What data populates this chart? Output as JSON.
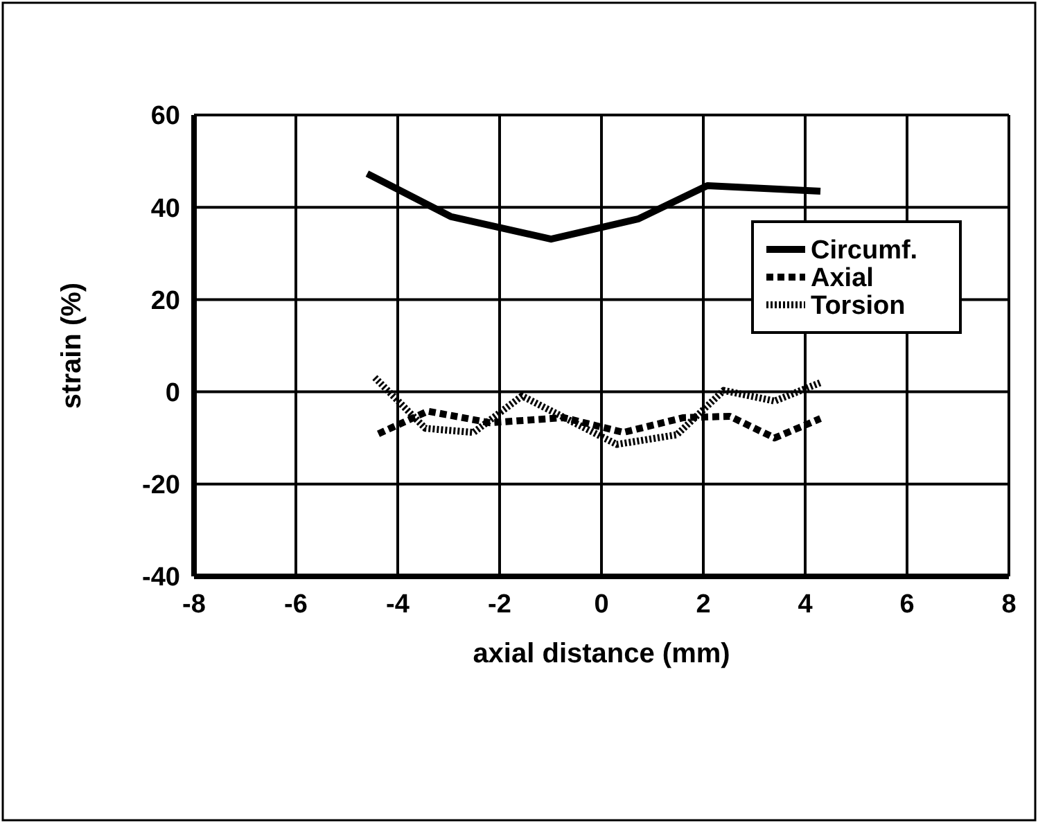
{
  "chart_data": {
    "type": "line",
    "xlabel": "axial distance (mm)",
    "ylabel": "strain (%)",
    "xlim": [
      -8,
      8
    ],
    "xticks": [
      -8,
      -6,
      -4,
      -2,
      0,
      2,
      4,
      6,
      8
    ],
    "ylim": [
      -40,
      60
    ],
    "yticks": [
      -40,
      -20,
      0,
      20,
      40,
      60
    ],
    "grid": true,
    "legend": "right",
    "marker": "none",
    "series": [
      {
        "name": "Circumf.",
        "color": "#000000",
        "line_style": "solid",
        "x": [
          -4.6,
          -2.96,
          -0.99,
          0.73,
          2.08,
          4.3
        ],
        "values": [
          47.3,
          38.0,
          33.1,
          37.5,
          44.7,
          43.5
        ]
      },
      {
        "name": "Axial",
        "color": "#000000",
        "line_style": "dashed",
        "x": [
          -4.38,
          -3.41,
          -2.19,
          -0.74,
          0.43,
          1.61,
          2.52,
          3.4,
          4.3
        ],
        "values": [
          -9.1,
          -4.2,
          -6.7,
          -5.6,
          -8.8,
          -5.6,
          -5.3,
          -10,
          -5.8
        ]
      },
      {
        "name": "Torsion",
        "color": "#000000",
        "line_style": "dotted",
        "x": [
          -4.45,
          -3.46,
          -2.51,
          -1.56,
          0.3,
          1.48,
          2.4,
          3.4,
          4.3
        ],
        "values": [
          3.1,
          -7.9,
          -8.8,
          -0.9,
          -11.4,
          -9.3,
          0.3,
          -2,
          2
        ]
      }
    ]
  }
}
